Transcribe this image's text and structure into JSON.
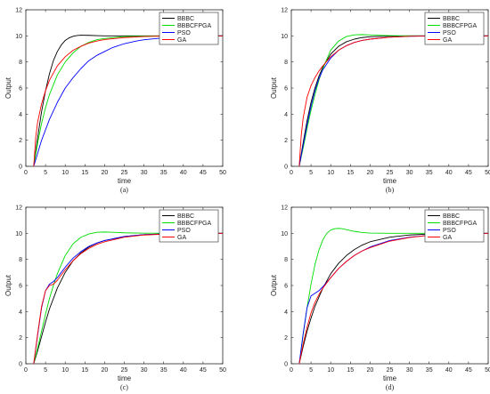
{
  "chart_data": [
    {
      "type": "line",
      "panel_label": "(a)",
      "xlabel": "time",
      "ylabel": "Output",
      "xlim": [
        0,
        50
      ],
      "ylim": [
        0,
        12
      ],
      "xticks": [
        0,
        5,
        10,
        15,
        20,
        25,
        30,
        35,
        40,
        45,
        50
      ],
      "yticks": [
        0,
        2,
        4,
        6,
        8,
        10,
        12
      ],
      "grid": false,
      "legend_position": "top-right",
      "series": [
        {
          "name": "BBBC",
          "color": "#000000",
          "x": [
            2,
            3,
            4,
            5,
            6,
            7,
            8,
            9,
            10,
            11,
            12,
            13,
            14,
            16,
            18,
            20,
            25,
            30,
            40,
            50
          ],
          "y": [
            0,
            2.2,
            4.2,
            5.8,
            7.1,
            8.1,
            8.8,
            9.3,
            9.65,
            9.85,
            9.97,
            10.03,
            10.05,
            10.04,
            10.02,
            10.0,
            10.0,
            10.0,
            10.0,
            10.0
          ]
        },
        {
          "name": "BBBCFPGA",
          "color": "#00dd00",
          "x": [
            2,
            3,
            4,
            5,
            6,
            8,
            10,
            12,
            14,
            16,
            18,
            20,
            25,
            30,
            35,
            40,
            50
          ],
          "y": [
            0,
            1.8,
            3.3,
            4.5,
            5.5,
            7.0,
            8.0,
            8.7,
            9.2,
            9.5,
            9.7,
            9.8,
            9.95,
            9.98,
            10.0,
            10.0,
            10.0
          ]
        },
        {
          "name": "PSO",
          "color": "#0000ff",
          "x": [
            2,
            4,
            6,
            8,
            10,
            12,
            14,
            16,
            18,
            20,
            22,
            25,
            28,
            30,
            35,
            40,
            45,
            50
          ],
          "y": [
            0,
            2.0,
            3.6,
            4.9,
            6.0,
            6.8,
            7.5,
            8.1,
            8.5,
            8.8,
            9.1,
            9.4,
            9.6,
            9.7,
            9.85,
            9.95,
            10.0,
            10.0
          ]
        },
        {
          "name": "GA",
          "color": "#ff0000",
          "x": [
            2,
            2.5,
            3,
            4,
            5,
            6,
            8,
            10,
            12,
            14,
            16,
            18,
            20,
            25,
            30,
            35,
            40,
            50
          ],
          "y": [
            0,
            2.2,
            3.4,
            4.8,
            5.8,
            6.6,
            7.7,
            8.4,
            8.9,
            9.2,
            9.45,
            9.6,
            9.72,
            9.87,
            9.95,
            9.98,
            10.0,
            10.0
          ]
        }
      ]
    },
    {
      "type": "line",
      "panel_label": "(b)",
      "xlabel": "time",
      "ylabel": "Output",
      "xlim": [
        0,
        50
      ],
      "ylim": [
        0,
        12
      ],
      "xticks": [
        0,
        5,
        10,
        15,
        20,
        25,
        30,
        35,
        40,
        45,
        50
      ],
      "yticks": [
        0,
        2,
        4,
        6,
        8,
        10,
        12
      ],
      "grid": false,
      "legend_position": "top-right",
      "series": [
        {
          "name": "BBBC",
          "color": "#000000",
          "x": [
            2,
            3,
            4,
            5,
            6,
            7,
            8,
            10,
            12,
            14,
            16,
            18,
            20,
            25,
            30,
            40,
            50
          ],
          "y": [
            0,
            1.8,
            3.5,
            4.9,
            6.0,
            6.9,
            7.6,
            8.6,
            9.2,
            9.55,
            9.75,
            9.87,
            9.93,
            9.98,
            10.0,
            10.0,
            10.0
          ]
        },
        {
          "name": "BBBCFPGA",
          "color": "#00dd00",
          "x": [
            2,
            3,
            4,
            5,
            6,
            7,
            8,
            10,
            12,
            14,
            16,
            18,
            20,
            25,
            30,
            40,
            50
          ],
          "y": [
            0,
            1.4,
            2.9,
            4.3,
            5.5,
            6.6,
            7.5,
            8.9,
            9.6,
            9.95,
            10.08,
            10.1,
            10.07,
            10.02,
            10.0,
            10.0,
            10.0
          ]
        },
        {
          "name": "PSO",
          "color": "#0000ff",
          "x": [
            2,
            3,
            4,
            5,
            6,
            7,
            8,
            10,
            12,
            14,
            16,
            18,
            20,
            25,
            30,
            35,
            40,
            50
          ],
          "y": [
            0,
            1.6,
            3.2,
            4.6,
            5.8,
            6.7,
            7.4,
            8.3,
            8.9,
            9.25,
            9.5,
            9.65,
            9.75,
            9.9,
            9.97,
            10.0,
            10.0,
            10.0
          ]
        },
        {
          "name": "GA",
          "color": "#ff0000",
          "x": [
            2,
            2.5,
            3,
            4,
            5,
            6,
            7,
            8,
            10,
            12,
            14,
            16,
            18,
            20,
            25,
            30,
            40,
            50
          ],
          "y": [
            0,
            2.3,
            3.7,
            5.3,
            6.2,
            6.8,
            7.3,
            7.7,
            8.4,
            8.9,
            9.25,
            9.5,
            9.65,
            9.75,
            9.9,
            9.97,
            10.0,
            10.0
          ]
        }
      ]
    },
    {
      "type": "line",
      "panel_label": "(c)",
      "xlabel": "time",
      "ylabel": "Output",
      "xlim": [
        0,
        50
      ],
      "ylim": [
        0,
        12
      ],
      "xticks": [
        0,
        5,
        10,
        15,
        20,
        25,
        30,
        35,
        40,
        45,
        50
      ],
      "yticks": [
        0,
        2,
        4,
        6,
        8,
        10,
        12
      ],
      "grid": false,
      "legend_position": "top-right",
      "series": [
        {
          "name": "BBBC",
          "color": "#000000",
          "x": [
            2,
            3,
            4,
            5,
            6,
            8,
            10,
            12,
            14,
            16,
            18,
            20,
            25,
            30,
            35,
            40,
            50
          ],
          "y": [
            0,
            1.0,
            2.1,
            3.2,
            4.2,
            5.8,
            7.0,
            7.9,
            8.5,
            8.95,
            9.25,
            9.45,
            9.75,
            9.9,
            9.96,
            10.0,
            10.0
          ]
        },
        {
          "name": "BBBCFPGA",
          "color": "#00dd00",
          "x": [
            2,
            3,
            4,
            5,
            6,
            7,
            8,
            10,
            12,
            14,
            16,
            18,
            20,
            22,
            25,
            30,
            40,
            50
          ],
          "y": [
            0,
            1.2,
            2.5,
            3.8,
            5.0,
            6.0,
            6.9,
            8.3,
            9.2,
            9.7,
            9.95,
            10.08,
            10.1,
            10.08,
            10.04,
            10.01,
            10.0,
            10.0
          ]
        },
        {
          "name": "PSO",
          "color": "#0000ff",
          "x": [
            2,
            3,
            4,
            5,
            6,
            7,
            8,
            9,
            10,
            12,
            14,
            16,
            18,
            20,
            25,
            30,
            40,
            50
          ],
          "y": [
            0,
            2.2,
            4.3,
            5.6,
            6.1,
            6.3,
            6.6,
            7.0,
            7.4,
            8.1,
            8.6,
            9.0,
            9.25,
            9.45,
            9.75,
            9.9,
            10.0,
            10.0
          ]
        },
        {
          "name": "GA",
          "color": "#ff0000",
          "x": [
            2,
            3,
            4,
            5,
            6,
            7,
            8,
            9,
            10,
            12,
            14,
            16,
            18,
            20,
            25,
            30,
            40,
            50
          ],
          "y": [
            0,
            2.3,
            4.4,
            5.6,
            6.0,
            6.1,
            6.4,
            6.8,
            7.2,
            7.9,
            8.45,
            8.85,
            9.15,
            9.35,
            9.7,
            9.87,
            10.0,
            10.0
          ]
        }
      ]
    },
    {
      "type": "line",
      "panel_label": "(d)",
      "xlabel": "time",
      "ylabel": "Output",
      "xlim": [
        0,
        50
      ],
      "ylim": [
        0,
        12
      ],
      "xticks": [
        0,
        5,
        10,
        15,
        20,
        25,
        30,
        35,
        40,
        45,
        50
      ],
      "yticks": [
        0,
        2,
        4,
        6,
        8,
        10,
        12
      ],
      "grid": false,
      "legend_position": "top-right",
      "series": [
        {
          "name": "BBBC",
          "color": "#000000",
          "x": [
            2,
            3,
            4,
            5,
            6,
            8,
            10,
            12,
            14,
            16,
            18,
            20,
            25,
            30,
            35,
            40,
            50
          ],
          "y": [
            0,
            1.3,
            2.5,
            3.5,
            4.4,
            5.8,
            6.9,
            7.7,
            8.3,
            8.75,
            9.1,
            9.35,
            9.7,
            9.87,
            9.95,
            10.0,
            10.0
          ]
        },
        {
          "name": "BBBCFPGA",
          "color": "#00dd00",
          "x": [
            2,
            3,
            4,
            5,
            6,
            7,
            8,
            9,
            10,
            11,
            12,
            13,
            14,
            16,
            18,
            20,
            25,
            30,
            40,
            50
          ],
          "y": [
            0,
            2.2,
            4.3,
            6.1,
            7.6,
            8.7,
            9.5,
            10.0,
            10.25,
            10.35,
            10.38,
            10.35,
            10.28,
            10.15,
            10.06,
            10.02,
            10.0,
            10.0,
            10.0,
            10.0
          ]
        },
        {
          "name": "PSO",
          "color": "#0000ff",
          "x": [
            2,
            3,
            4,
            5,
            6,
            7,
            8,
            10,
            12,
            14,
            16,
            18,
            20,
            25,
            30,
            35,
            40,
            50
          ],
          "y": [
            0,
            2.3,
            4.3,
            5.2,
            5.4,
            5.6,
            5.9,
            6.6,
            7.3,
            7.85,
            8.3,
            8.65,
            8.95,
            9.45,
            9.7,
            9.85,
            9.93,
            10.0
          ]
        },
        {
          "name": "GA",
          "color": "#ff0000",
          "x": [
            2,
            3,
            4,
            5,
            6,
            7,
            8,
            10,
            12,
            14,
            16,
            18,
            20,
            25,
            30,
            35,
            40,
            50
          ],
          "y": [
            0,
            1.5,
            2.8,
            3.9,
            4.7,
            5.3,
            5.8,
            6.6,
            7.3,
            7.85,
            8.3,
            8.65,
            8.9,
            9.4,
            9.68,
            9.85,
            9.93,
            10.0
          ]
        }
      ]
    }
  ]
}
